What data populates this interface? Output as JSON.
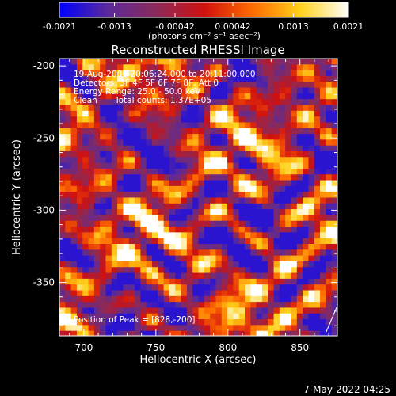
{
  "chart_data": {
    "type": "heatmap",
    "title": "Reconstructed RHESSI Image",
    "xlabel": "Heliocentric X (arcsec)",
    "ylabel": "Heliocentric Y (arcsec)",
    "xlim": [
      683,
      876
    ],
    "ylim": [
      -387,
      -195
    ],
    "x_ticks": [
      700,
      750,
      800,
      850
    ],
    "y_ticks": [
      -200,
      -250,
      -300,
      -350
    ],
    "x_tick_labels": [
      "700",
      "750",
      "800",
      "850"
    ],
    "y_tick_labels": [
      "-200",
      "-250",
      "-300",
      "-350"
    ],
    "colorbar": {
      "range": [
        -0.0021,
        0.0021
      ],
      "tick_labels": [
        "-0.0021",
        "-0.0013",
        "-0.00042",
        "0.00042",
        "0.0013",
        "0.0021"
      ],
      "units": "(photons cm⁻² s⁻¹ asec⁻²)",
      "colors": [
        "#0000ff",
        "#5a2a9a",
        "#8a2a5a",
        "#d01010",
        "#ff6a00",
        "#ffd21a",
        "#ffffff"
      ]
    },
    "annotations": {
      "time": "19-Aug-2006 20:06:24.000 to 20:11:00.000",
      "detectors": "Detectors: 3F 4F 5F 6F 7F 8F, Att 0",
      "energy": "Energy Range: 25.0 - 50.0 keV",
      "clean_label": "Clean",
      "total_counts": "Total counts: 1.37E+05",
      "peak": "Position of Peak = [828,-200]"
    },
    "grid": false
  },
  "footer": {
    "timestamp": "7-May-2022 04:25"
  }
}
